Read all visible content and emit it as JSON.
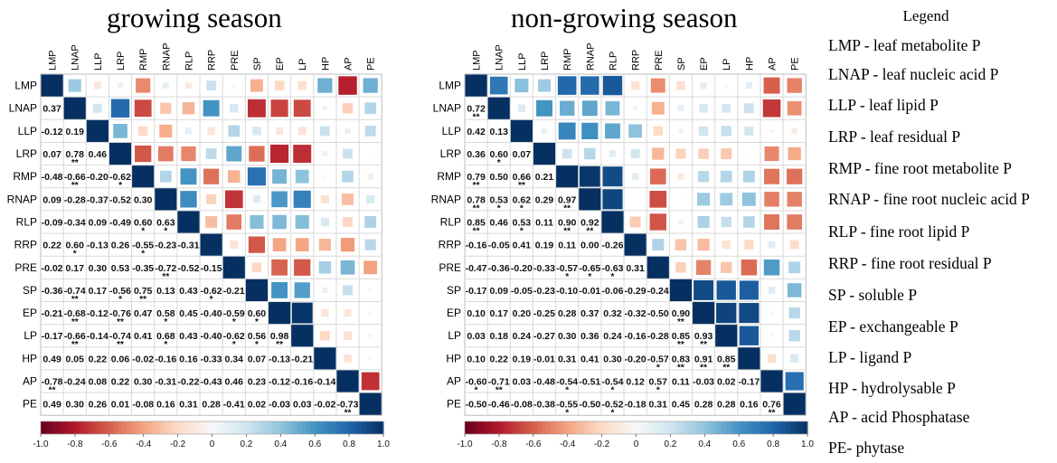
{
  "chart_data": [
    {
      "type": "heatmap",
      "title": "growing season",
      "variables": [
        "LMP",
        "LNAP",
        "LLP",
        "LRP",
        "RMP",
        "RNAP",
        "RLP",
        "RRP",
        "PRE",
        "SP",
        "EP",
        "LP",
        "HP",
        "AP",
        "PE"
      ],
      "lower_triangle_values": [
        [],
        [
          "0.37"
        ],
        [
          "-0.12",
          "0.19"
        ],
        [
          "0.07",
          "0.78",
          "0.46"
        ],
        [
          "-0.48",
          "-0.66",
          "-0.20",
          "-0.62"
        ],
        [
          "0.09",
          "-0.28",
          "-0.37",
          "-0.52",
          "0.30"
        ],
        [
          "-0.09",
          "-0.34",
          "0.09",
          "-0.49",
          "0.60",
          "0.63"
        ],
        [
          "0.22",
          "0.60",
          "-0.13",
          "0.26",
          "-0.55",
          "-0.23",
          "-0.31"
        ],
        [
          "-0.02",
          "0.17",
          "0.30",
          "0.53",
          "-0.35",
          "-0.72",
          "-0.52",
          "-0.15"
        ],
        [
          "-0.36",
          "-0.74",
          "0.17",
          "-0.56",
          "0.75",
          "0.13",
          "0.43",
          "-0.62",
          "-0.21"
        ],
        [
          "-0.21",
          "-0.68",
          "-0.12",
          "-0.76",
          "0.47",
          "0.58",
          "0.45",
          "-0.40",
          "-0.59",
          "0.60"
        ],
        [
          "-0.17",
          "-0.66",
          "-0.14",
          "-0.74",
          "0.41",
          "0.68",
          "0.43",
          "-0.40",
          "-0.62",
          "0.56",
          "0.98"
        ],
        [
          "0.49",
          "0.05",
          "0.22",
          "0.06",
          "-0.02",
          "-0.16",
          "0.16",
          "-0.33",
          "0.34",
          "0.07",
          "-0.13",
          "-0.21"
        ],
        [
          "-0.78",
          "-0.24",
          "0.08",
          "0.22",
          "0.30",
          "-0.31",
          "-0.22",
          "-0.43",
          "0.46",
          "0.23",
          "-0.12",
          "-0.16",
          "-0.14"
        ],
        [
          "0.49",
          "0.30",
          "0.26",
          "0.01",
          "-0.08",
          "0.16",
          "0.31",
          "0.28",
          "-0.41",
          "0.02",
          "-0.03",
          "0.03",
          "-0.02",
          "-0.73"
        ]
      ],
      "lower_triangle_stars": [
        [],
        [
          ""
        ],
        [
          "",
          ""
        ],
        [
          "",
          "**",
          ""
        ],
        [
          "",
          "**",
          "",
          "*"
        ],
        [
          "",
          "",
          "",
          "",
          ""
        ],
        [
          "",
          "",
          "",
          "",
          "*",
          "*"
        ],
        [
          "",
          "*",
          "",
          "",
          "*",
          "",
          ""
        ],
        [
          "",
          "",
          "",
          "",
          "",
          "**",
          "",
          ""
        ],
        [
          "",
          "**",
          "",
          "*",
          "**",
          "",
          "",
          "*",
          ""
        ],
        [
          "",
          "**",
          "",
          "**",
          "",
          "*",
          "",
          "",
          "*",
          "*"
        ],
        [
          "",
          "**",
          "",
          "**",
          "",
          "*",
          "",
          "",
          "*",
          "*",
          "**"
        ],
        [
          "",
          "",
          "",
          "",
          "",
          "",
          "",
          "",
          "",
          "",
          "",
          ""
        ],
        [
          "**",
          "",
          "",
          "",
          "",
          "",
          "",
          "",
          "",
          "",
          "",
          "",
          ""
        ],
        [
          "",
          "",
          "",
          "",
          "",
          "",
          "",
          "",
          "",
          "",
          "",
          "",
          "",
          "**"
        ]
      ],
      "upper_triangle_values": [
        [
          0.37,
          -0.12,
          0.07,
          -0.48,
          0.09,
          -0.09,
          0.22,
          -0.02,
          -0.36,
          -0.21,
          -0.17,
          0.49,
          -0.78,
          0.49
        ],
        [
          0.19,
          0.78,
          -0.66,
          -0.28,
          -0.34,
          0.6,
          0.17,
          -0.74,
          -0.68,
          -0.66,
          0.05,
          -0.24,
          0.3
        ],
        [
          0.46,
          -0.2,
          -0.37,
          0.09,
          -0.13,
          0.3,
          0.17,
          -0.12,
          -0.14,
          0.22,
          0.08,
          0.26
        ],
        [
          -0.62,
          -0.52,
          -0.49,
          0.26,
          0.53,
          -0.56,
          -0.76,
          -0.74,
          0.06,
          0.22,
          0.01
        ],
        [
          0.3,
          0.6,
          -0.55,
          -0.35,
          0.75,
          0.47,
          0.41,
          -0.02,
          0.3,
          -0.08
        ],
        [
          0.63,
          -0.23,
          -0.72,
          0.13,
          0.58,
          0.68,
          -0.16,
          -0.31,
          0.16
        ],
        [
          -0.31,
          -0.52,
          0.43,
          0.45,
          0.43,
          0.16,
          -0.22,
          0.31
        ],
        [
          -0.15,
          -0.62,
          -0.4,
          -0.4,
          -0.33,
          -0.43,
          0.28
        ],
        [
          -0.21,
          -0.59,
          -0.62,
          0.34,
          0.46,
          -0.41
        ],
        [
          0.6,
          0.56,
          0.07,
          0.23,
          0.02
        ],
        [
          0.98,
          -0.13,
          -0.12,
          -0.03
        ],
        [
          -0.21,
          -0.16,
          0.03
        ],
        [
          -0.14,
          -0.02
        ],
        [
          -0.73
        ]
      ],
      "colorbar": {
        "ticks": [
          "-1.0",
          "-0.8",
          "-0.6",
          "-0.4",
          "-0.2",
          "0",
          "0.2",
          "0.4",
          "0.6",
          "0.8",
          "1.0"
        ],
        "range": [
          -1,
          1
        ]
      }
    },
    {
      "type": "heatmap",
      "title": "non-growing season",
      "variables": [
        "LMP",
        "LNAP",
        "LLP",
        "LRP",
        "RMP",
        "RNAP",
        "RLP",
        "RRP",
        "PRE",
        "SP",
        "EP",
        "LP",
        "HP",
        "AP",
        "PE"
      ],
      "lower_triangle_values": [
        [],
        [
          "0.72"
        ],
        [
          "0.42",
          "0.13"
        ],
        [
          "0.36",
          "0.60",
          "0.07"
        ],
        [
          "0.79",
          "0.50",
          "0.66",
          "0.21"
        ],
        [
          "0.78",
          "0.53",
          "0.62",
          "0.29",
          "0.97"
        ],
        [
          "0.85",
          "0.46",
          "0.53",
          "0.11",
          "0.90",
          "0.92"
        ],
        [
          "-0.16",
          "-0.05",
          "0.41",
          "0.19",
          "0.11",
          "0.00",
          "-0.26"
        ],
        [
          "-0.47",
          "-0.36",
          "-0.20",
          "-0.33",
          "-0.57",
          "-0.65",
          "-0.63",
          "0.31"
        ],
        [
          "-0.17",
          "0.09",
          "-0.05",
          "-0.23",
          "-0.10",
          "-0.01",
          "-0.06",
          "-0.29",
          "-0.24"
        ],
        [
          "0.10",
          "0.17",
          "0.20",
          "-0.25",
          "0.28",
          "0.37",
          "0.32",
          "-0.32",
          "-0.50",
          "0.90"
        ],
        [
          "0.03",
          "0.18",
          "0.24",
          "-0.27",
          "0.30",
          "0.36",
          "0.24",
          "-0.16",
          "-0.28",
          "0.85",
          "0.93"
        ],
        [
          "0.10",
          "0.22",
          "0.19",
          "-0.01",
          "0.31",
          "0.41",
          "0.30",
          "-0.20",
          "-0.57",
          "0.83",
          "0.91",
          "0.85"
        ],
        [
          "-0.60",
          "-0.71",
          "0.03",
          "-0.48",
          "-0.54",
          "-0.51",
          "-0.54",
          "0.12",
          "0.57",
          "0.11",
          "-0.03",
          "0.02",
          "-0.17"
        ],
        [
          "-0.50",
          "-0.46",
          "-0.08",
          "-0.38",
          "-0.55",
          "-0.50",
          "-0.52",
          "-0.18",
          "0.31",
          "0.45",
          "0.28",
          "0.28",
          "0.16",
          "0.76"
        ]
      ],
      "lower_triangle_stars": [
        [],
        [
          "**"
        ],
        [
          "",
          ""
        ],
        [
          "",
          "*",
          ""
        ],
        [
          "**",
          "",
          "**",
          ""
        ],
        [
          "**",
          "*",
          "*",
          "",
          "**"
        ],
        [
          "**",
          "",
          "*",
          "",
          "**",
          "**"
        ],
        [
          "",
          "",
          "",
          "",
          "",
          "",
          ""
        ],
        [
          "",
          "",
          "",
          "",
          "*",
          "*",
          "*",
          ""
        ],
        [
          "",
          "",
          "",
          "",
          "",
          "",
          "",
          "",
          ""
        ],
        [
          "",
          "",
          "",
          "",
          "",
          "",
          "",
          "",
          "",
          "**"
        ],
        [
          "",
          "",
          "",
          "",
          "",
          "",
          "",
          "",
          "",
          "**",
          "**"
        ],
        [
          "",
          "",
          "",
          "",
          "",
          "",
          "",
          "",
          "*",
          "**",
          "**",
          "**"
        ],
        [
          "*",
          "**",
          "",
          "",
          "*",
          "",
          "*",
          "",
          "*",
          "",
          "",
          "",
          ""
        ],
        [
          "",
          "",
          "",
          "",
          "*",
          "",
          "*",
          "",
          "",
          "",
          "",
          "",
          "",
          "**"
        ]
      ],
      "upper_triangle_values": [
        [
          0.72,
          0.42,
          0.36,
          0.79,
          0.78,
          0.85,
          -0.16,
          -0.47,
          -0.17,
          0.1,
          0.03,
          0.1,
          -0.6,
          -0.5
        ],
        [
          0.13,
          0.6,
          0.5,
          0.53,
          0.46,
          -0.05,
          -0.36,
          0.09,
          0.17,
          0.18,
          0.22,
          -0.71,
          -0.46
        ],
        [
          0.07,
          0.66,
          0.62,
          0.53,
          0.41,
          -0.2,
          -0.05,
          0.2,
          0.24,
          0.19,
          0.03,
          -0.08
        ],
        [
          0.21,
          0.29,
          0.11,
          0.19,
          -0.33,
          -0.23,
          -0.25,
          -0.27,
          -0.01,
          -0.48,
          -0.38
        ],
        [
          0.97,
          0.9,
          0.11,
          -0.57,
          -0.1,
          0.28,
          0.3,
          0.31,
          -0.54,
          -0.55
        ],
        [
          0.92,
          0.0,
          -0.65,
          -0.01,
          0.37,
          0.36,
          0.41,
          -0.51,
          -0.5
        ],
        [
          -0.26,
          -0.63,
          -0.06,
          0.32,
          0.24,
          0.3,
          -0.54,
          -0.52
        ],
        [
          0.31,
          -0.29,
          -0.32,
          -0.16,
          -0.2,
          0.12,
          -0.18
        ],
        [
          -0.24,
          -0.5,
          -0.28,
          -0.57,
          0.57,
          0.31
        ],
        [
          0.9,
          0.85,
          0.83,
          0.11,
          0.45
        ],
        [
          0.93,
          0.91,
          -0.03,
          0.28
        ],
        [
          0.85,
          0.02,
          0.28
        ],
        [
          -0.17,
          0.16
        ],
        [
          0.76
        ]
      ],
      "colorbar": {
        "ticks": [
          "-1.0",
          "-0.8",
          "-0.6",
          "-0.4",
          "-0.2",
          "0",
          "0.2",
          "0.4",
          "0.6",
          "0.8",
          "1.0"
        ],
        "range": [
          -1,
          1
        ]
      }
    }
  ],
  "legend": {
    "title": "Legend",
    "entries": [
      "LMP - leaf metabolite P",
      "LNAP - leaf nucleic acid P",
      "LLP - leaf lipid P",
      "LRP - leaf residual P",
      "RMP - fine root metabolite P",
      "RNAP - fine root nucleic acid P",
      "RLP - fine root lipid P",
      "RRP - fine root residual P",
      "SP - soluble P",
      "EP - exchangeable P",
      "LP - ligand P",
      "HP - hydrolysable P",
      "AP - acid Phosphatase",
      "PE- phytase"
    ]
  }
}
